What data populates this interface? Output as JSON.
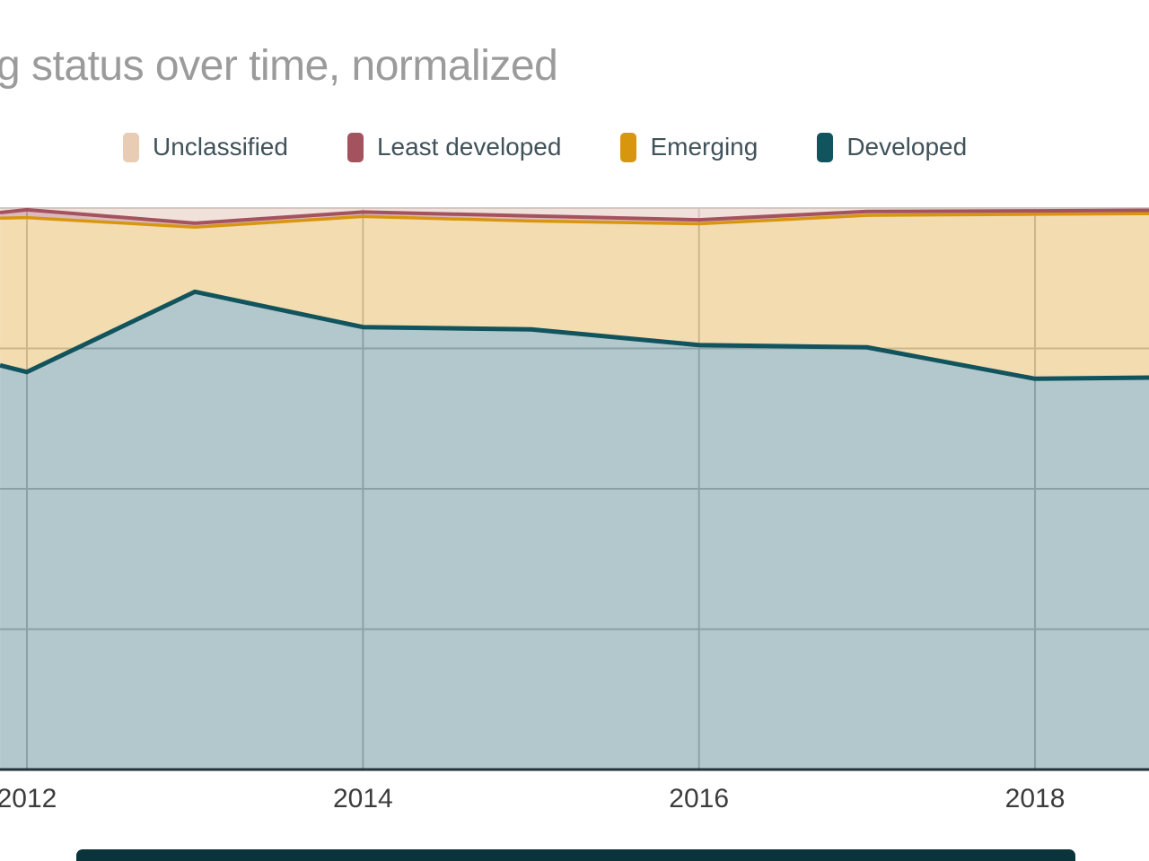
{
  "title": "g status over time, normalized",
  "colors": {
    "title_text": "#9b9b9b",
    "legend_text": "#40525a",
    "tick_text": "#3c3c3c",
    "grid": "#c6c6c6",
    "top_grid": "#c9c9c9",
    "axis_line": "#22313a",
    "footer_bar": "#0b333b",
    "background": "#ffffff"
  },
  "chart_data": {
    "type": "area",
    "stacked": true,
    "normalized": true,
    "title": "g status over time, normalized",
    "legend_position": "top",
    "grid": true,
    "x_axis": {
      "ticks": [
        2012,
        2014,
        2016,
        2018
      ],
      "tick_labels": [
        "2012",
        "2014",
        "2016",
        "2018"
      ],
      "visible_range_years": [
        2011.84,
        2018.68
      ]
    },
    "y_axis": {
      "min": 0,
      "max": 100,
      "unit": "percent",
      "gridline_pcts": [
        25,
        50,
        75,
        100
      ]
    },
    "categories_years": [
      2012,
      2013,
      2014,
      2015,
      2016,
      2017,
      2018
    ],
    "boundary_x_years": [
      2011.84,
      2012,
      2013,
      2014,
      2015,
      2016,
      2017,
      2018,
      2018.68
    ],
    "series": [
      {
        "name": "Unclassified",
        "color": "#e8cdb4",
        "fill": "rgba(226,196,184,0.5)",
        "line": false,
        "stroke_width": 0,
        "values_pct": [
          0.3,
          2.7,
          0.7,
          1.4,
          2.1,
          0.6,
          0.5
        ],
        "top_boundary_pct": [
          100,
          100,
          100,
          100,
          100,
          100,
          100,
          100,
          100
        ]
      },
      {
        "name": "Least developed",
        "color": "#a4525e",
        "fill": "rgba(164,82,94,0.4)",
        "line": true,
        "stroke_width": 4,
        "values_pct": [
          1.4,
          0.7,
          0.8,
          0.9,
          0.7,
          0.7,
          0.6
        ],
        "top_boundary_pct": [
          99.2,
          99.7,
          97.3,
          99.3,
          98.6,
          97.9,
          99.4,
          99.5,
          99.6
        ]
      },
      {
        "name": "Emerging",
        "color": "#d8960f",
        "fill": "rgba(216,150,15,0.33)",
        "line": true,
        "stroke_width": 3.5,
        "values_pct": [
          27.5,
          11.5,
          19.7,
          19.3,
          21.6,
          23.5,
          29.3
        ],
        "top_boundary_pct": [
          98.2,
          98.3,
          96.6,
          98.5,
          97.7,
          97.2,
          98.7,
          98.9,
          99.0
        ]
      },
      {
        "name": "Developed",
        "color": "#11545e",
        "fill": "rgba(15,85,96,0.32)",
        "line": true,
        "stroke_width": 5,
        "values_pct": [
          70.8,
          85.1,
          78.8,
          78.4,
          75.6,
          75.2,
          69.6
        ],
        "top_boundary_pct": [
          72.0,
          70.8,
          85.1,
          78.8,
          78.4,
          75.6,
          75.2,
          69.6,
          69.8
        ]
      }
    ]
  }
}
